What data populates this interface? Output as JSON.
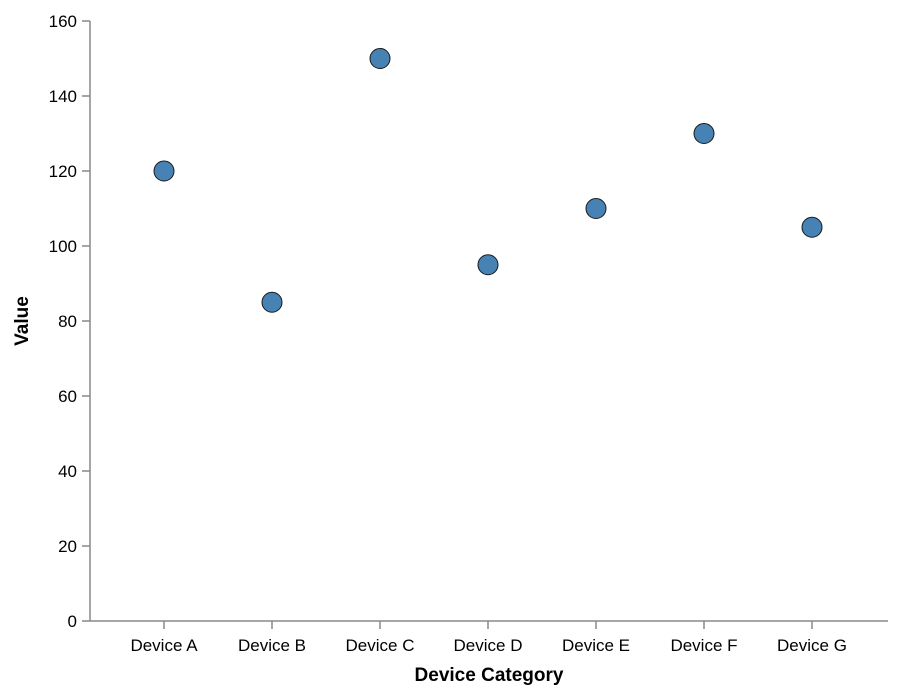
{
  "chart_data": {
    "type": "scatter",
    "title": "",
    "xlabel": "Device Category",
    "ylabel": "Value",
    "categories": [
      "Device A",
      "Device B",
      "Device C",
      "Device D",
      "Device E",
      "Device F",
      "Device G"
    ],
    "values": [
      120,
      85,
      150,
      95,
      110,
      130,
      105
    ],
    "ylim": [
      0,
      160
    ],
    "yticks": [
      0,
      20,
      40,
      60,
      80,
      100,
      120,
      140,
      160
    ],
    "grid": false,
    "point_color": "#4682b4"
  }
}
